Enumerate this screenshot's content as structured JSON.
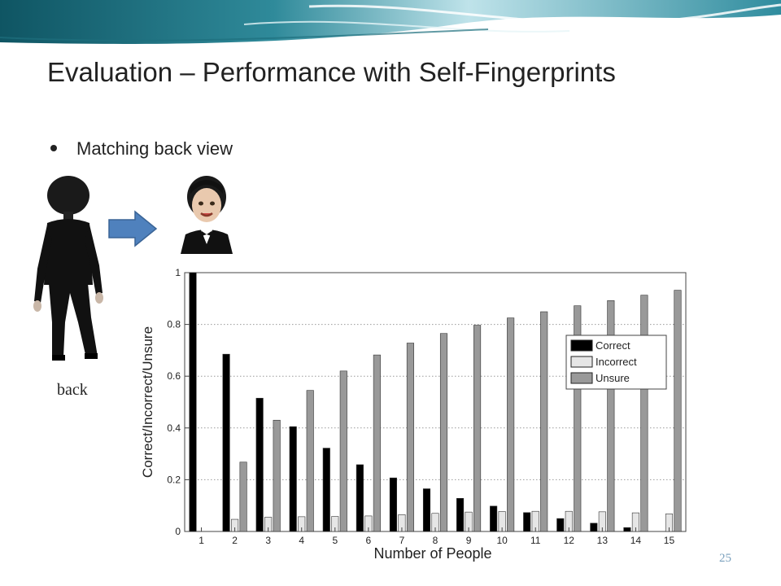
{
  "slide": {
    "title": "Evaluation – Performance with Self-Fingerprints",
    "bullet": "Matching back view",
    "image_label": "back",
    "page_number": "25"
  },
  "colors": {
    "title": "#222222",
    "page_number": "#7aa0bd",
    "arrow": "#4f81bd",
    "correct": "#000000",
    "incorrect": "#e6e6e6",
    "unsure": "#999999"
  },
  "icons": {
    "back_avatar": "person-back-view-icon",
    "front_avatar": "person-front-view-icon",
    "arrow": "arrow-right-icon",
    "bullet": "bullet-dot-icon"
  },
  "chart_data": {
    "type": "bar",
    "xlabel": "Number of People",
    "ylabel": "Correct/Incorrect/Unsure",
    "categories": [
      "1",
      "2",
      "3",
      "4",
      "5",
      "6",
      "7",
      "8",
      "9",
      "10",
      "11",
      "12",
      "13",
      "14",
      "15"
    ],
    "ylim": [
      0,
      1
    ],
    "yticks": [
      0,
      0.2,
      0.4,
      0.6,
      0.8,
      1
    ],
    "ytick_labels": [
      "0",
      "0.2",
      "0.4",
      "0.6",
      "0.8",
      "1"
    ],
    "grid": "horizontal dotted",
    "legend_position": "right",
    "series": [
      {
        "name": "Correct",
        "color": "#000000",
        "values": [
          1.0,
          0.685,
          0.515,
          0.405,
          0.322,
          0.258,
          0.207,
          0.165,
          0.128,
          0.098,
          0.073,
          0.05,
          0.032,
          0.015,
          0.0
        ]
      },
      {
        "name": "Incorrect",
        "color": "#e6e6e6",
        "values": [
          0.0,
          0.047,
          0.055,
          0.057,
          0.058,
          0.06,
          0.065,
          0.07,
          0.075,
          0.077,
          0.078,
          0.078,
          0.076,
          0.072,
          0.068
        ]
      },
      {
        "name": "Unsure",
        "color": "#999999",
        "values": [
          0.0,
          0.268,
          0.43,
          0.545,
          0.62,
          0.682,
          0.728,
          0.765,
          0.797,
          0.825,
          0.849,
          0.872,
          0.892,
          0.913,
          0.932
        ]
      }
    ]
  }
}
